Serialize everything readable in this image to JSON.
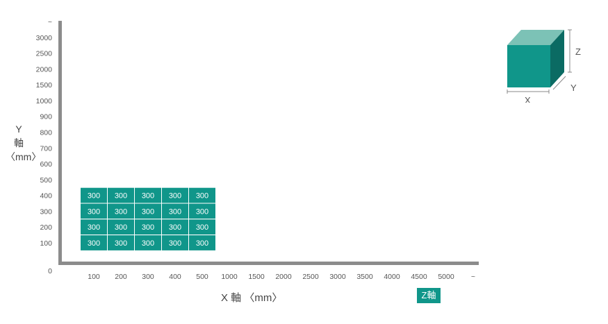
{
  "chart_data": {
    "type": "table",
    "y_axis": {
      "title_lines": [
        "Y",
        "軸",
        "〈mm〉"
      ],
      "ticks": [
        "100",
        "200",
        "300",
        "400",
        "500",
        "600",
        "700",
        "800",
        "900",
        "1000",
        "1500",
        "2000",
        "2500",
        "3000",
        "~"
      ]
    },
    "x_axis": {
      "title": "X 軸 〈mm〉",
      "ticks": [
        "100",
        "200",
        "300",
        "400",
        "500",
        "1000",
        "1500",
        "2000",
        "2500",
        "3000",
        "3500",
        "4000",
        "4500",
        "5000",
        "~"
      ]
    },
    "origin_label": "0",
    "grid": {
      "columns": 5,
      "rows": 4,
      "cells": [
        [
          "300",
          "300",
          "300",
          "300",
          "300"
        ],
        [
          "300",
          "300",
          "300",
          "300",
          "300"
        ],
        [
          "300",
          "300",
          "300",
          "300",
          "300"
        ],
        [
          "300",
          "300",
          "300",
          "300",
          "300"
        ]
      ]
    },
    "z_axis_badge": "Z軸",
    "legend_cube": {
      "x_label": "X",
      "y_label": "Y",
      "z_label": "Z"
    },
    "colors": {
      "teal": "#10968a",
      "teal_light": "#7cc2b6",
      "teal_dark": "#0b6b63",
      "axis": "#8c8c8c"
    }
  }
}
